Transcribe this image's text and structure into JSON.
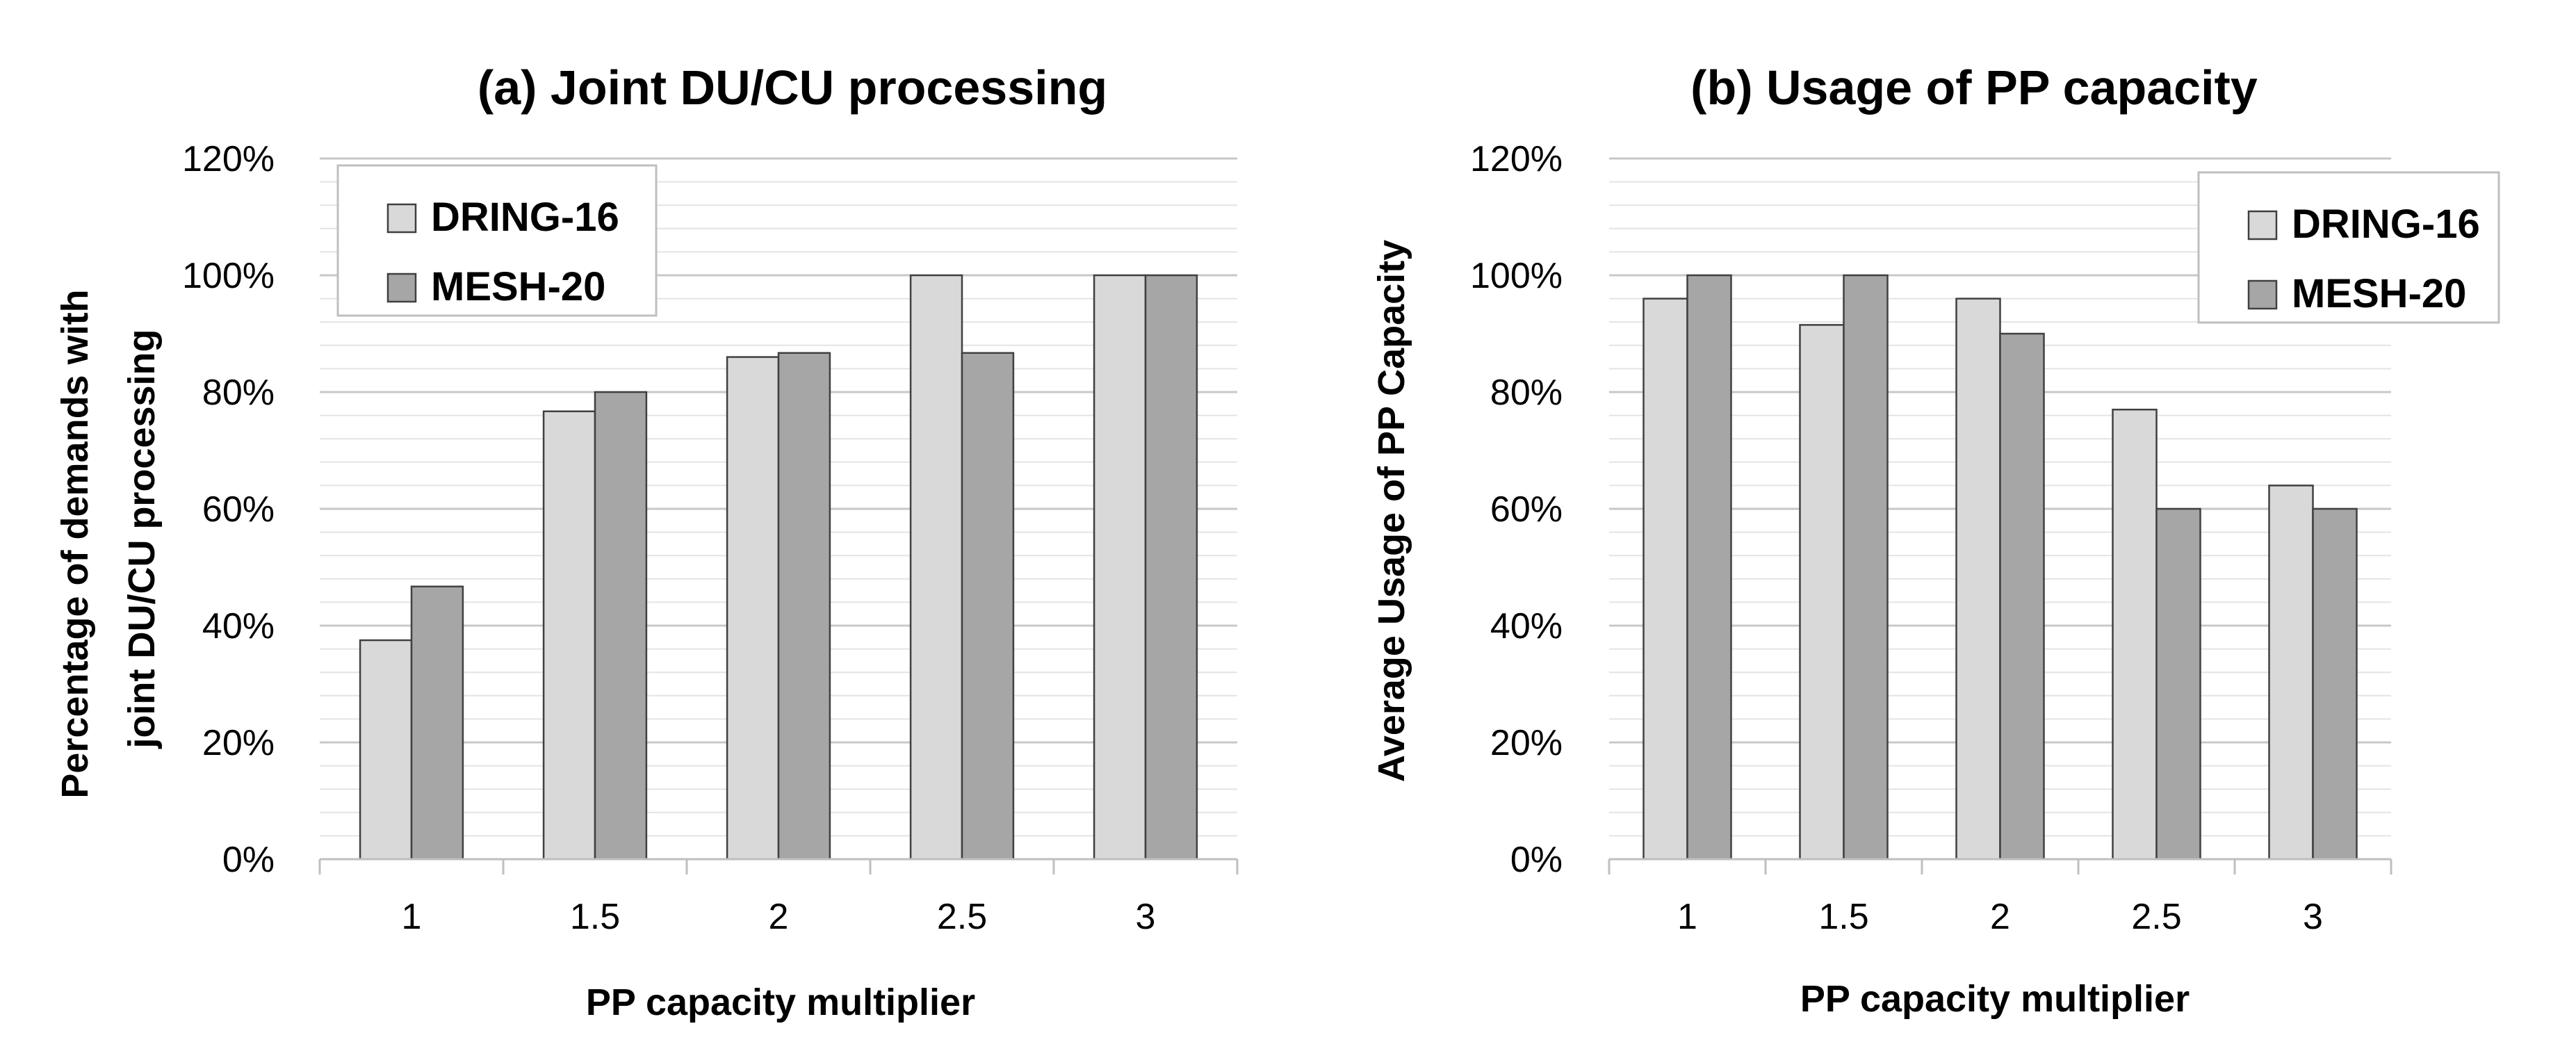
{
  "chart_data": [
    {
      "type": "bar",
      "title": "(a) Joint DU/CU processing",
      "xlabel": "PP capacity multiplier",
      "ylabel": "Percentage of demands with joint DU/CU processing",
      "ylabel_lines": [
        "Percentage of demands with",
        "joint DU/CU processing"
      ],
      "categories": [
        "1",
        "1.5",
        "2",
        "2.5",
        "3"
      ],
      "ylim": [
        0,
        120
      ],
      "yticks": [
        "0%",
        "20%",
        "40%",
        "60%",
        "80%",
        "100%",
        "120%"
      ],
      "legend_position": "top-left",
      "grid": true,
      "series": [
        {
          "name": "DRING-16",
          "color": "#d9d9d9",
          "values": [
            37.5,
            76.7,
            86,
            100,
            100
          ]
        },
        {
          "name": "MESH-20",
          "color": "#a6a6a6",
          "values": [
            46.7,
            80,
            86.7,
            86.7,
            100
          ]
        }
      ]
    },
    {
      "type": "bar",
      "title": "(b) Usage of PP capacity",
      "xlabel": "PP capacity multiplier",
      "ylabel": "Average Usage of PP Capacity",
      "ylabel_lines": [
        "Average Usage of PP Capacity"
      ],
      "categories": [
        "1",
        "1.5",
        "2",
        "2.5",
        "3"
      ],
      "ylim": [
        0,
        120
      ],
      "yticks": [
        "0%",
        "20%",
        "40%",
        "60%",
        "80%",
        "100%",
        "120%"
      ],
      "legend_position": "top-right",
      "grid": true,
      "series": [
        {
          "name": "DRING-16",
          "color": "#d9d9d9",
          "values": [
            96,
            91.5,
            96,
            77,
            64
          ]
        },
        {
          "name": "MESH-20",
          "color": "#a6a6a6",
          "values": [
            100,
            100,
            90,
            60,
            60
          ]
        }
      ]
    }
  ]
}
